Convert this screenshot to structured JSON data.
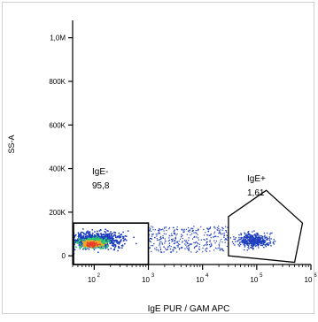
{
  "chart_data": {
    "type": "scatter",
    "title": "",
    "xlabel": "IgE PUR / GAM APC",
    "ylabel": "SS-A",
    "x_scale": "log",
    "xlim": [
      40,
      1000000
    ],
    "ylim": [
      -40000,
      1080000
    ],
    "y_ticks": [
      {
        "value": 0,
        "label": "0"
      },
      {
        "value": 200000,
        "label": "200K"
      },
      {
        "value": 400000,
        "label": "400K"
      },
      {
        "value": 600000,
        "label": "600K"
      },
      {
        "value": 800000,
        "label": "800K"
      },
      {
        "value": 1000000,
        "label": "1,0M"
      }
    ],
    "x_ticks": [
      {
        "value": 100,
        "base": "10",
        "exp": "2"
      },
      {
        "value": 1000,
        "base": "10",
        "exp": "3"
      },
      {
        "value": 10000,
        "base": "10",
        "exp": "4"
      },
      {
        "value": 100000,
        "base": "10",
        "exp": "5"
      },
      {
        "value": 1000000,
        "base": "10",
        "exp": "6"
      }
    ],
    "gates": [
      {
        "name": "IgE-",
        "value": "95,8",
        "shape": "rectangle",
        "x_range": [
          40,
          1000
        ],
        "y_range": [
          -40000,
          150000
        ]
      },
      {
        "name": "IgE+",
        "value": "1,61",
        "shape": "polygon",
        "vertices": [
          [
            30000,
            0
          ],
          [
            30000,
            180000
          ],
          [
            150000,
            300000
          ],
          [
            700000,
            150000
          ],
          [
            500000,
            -30000
          ]
        ]
      }
    ],
    "populations": [
      {
        "label": "negative",
        "x_range": [
          40,
          1000
        ],
        "y_range": [
          10000,
          140000
        ],
        "density": "high"
      },
      {
        "label": "spread",
        "x_range": [
          1000,
          30000
        ],
        "y_range": [
          10000,
          140000
        ],
        "density": "low"
      },
      {
        "label": "positive",
        "x_range": [
          30000,
          400000
        ],
        "y_range": [
          20000,
          120000
        ],
        "density": "medium"
      }
    ],
    "colors": {
      "dots": "#1f3fbf",
      "hot": "#f5a623",
      "core": "#e8402a",
      "mid": "#2ecc71",
      "frame": "#000000"
    }
  }
}
